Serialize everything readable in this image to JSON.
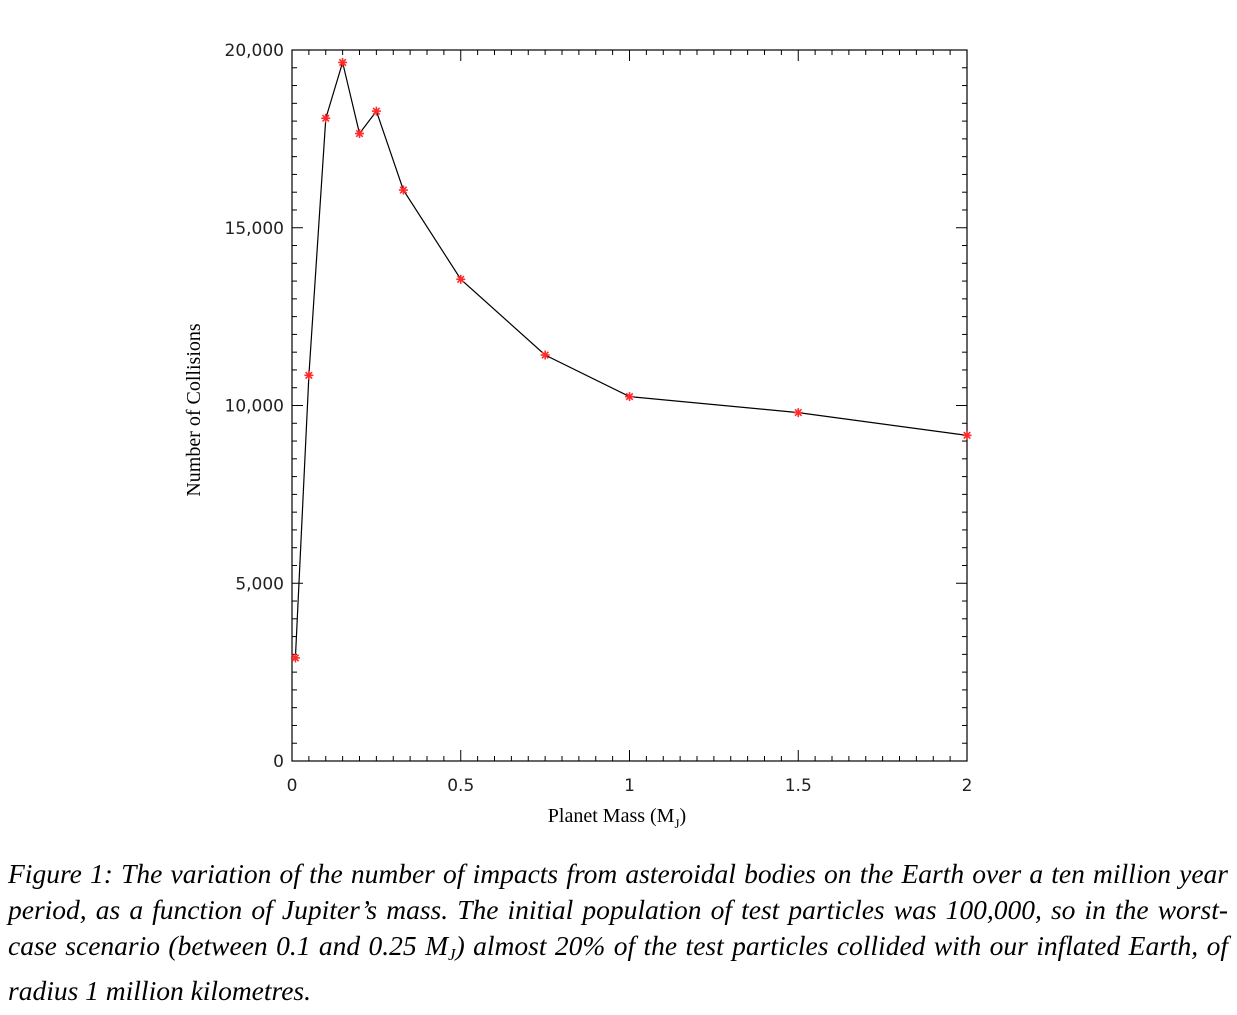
{
  "chart_data": {
    "type": "line",
    "title": "",
    "xlabel": "Planet Mass (M",
    "xlabel_subscript": "J",
    "xlabel_close": ")",
    "ylabel": "Number of Collisions",
    "xlim": [
      0,
      2
    ],
    "ylim": [
      0,
      20000
    ],
    "x_ticks": [
      {
        "value": 0,
        "label": "0"
      },
      {
        "value": 0.5,
        "label": "0.5"
      },
      {
        "value": 1,
        "label": "1"
      },
      {
        "value": 1.5,
        "label": "1.5"
      },
      {
        "value": 2,
        "label": "2"
      }
    ],
    "y_ticks": [
      {
        "value": 0,
        "label": "0"
      },
      {
        "value": 5000,
        "label": "5,000"
      },
      {
        "value": 10000,
        "label": "10,000"
      },
      {
        "value": 15000,
        "label": "15,000"
      },
      {
        "value": 20000,
        "label": "20,000"
      }
    ],
    "grid": false,
    "line_color": "#000000",
    "marker_color": "#ff2a2a",
    "marker": "asterisk",
    "series": [
      {
        "x": [
          0.01,
          0.05,
          0.1,
          0.15,
          0.2,
          0.25,
          0.33,
          0.5,
          0.75,
          1.0,
          1.5,
          2.0
        ],
        "y": [
          2900,
          10850,
          18080,
          19650,
          17650,
          18280,
          16060,
          13550,
          11420,
          10250,
          9800,
          9160
        ]
      }
    ]
  },
  "caption": {
    "lead": "Figure 1: ",
    "text_before_sub": "The variation of the number of impacts from asteroidal bodies on the Earth over a ten million year period, as a function of Jupiter’s mass. The initial population of test particles was 100,000, so in the worst-case scenario (between 0.1 and 0.25 M",
    "subscript": "J",
    "text_after_sub": ") almost 20% of the test particles collided with our inflated Earth, of radius 1 million kilometres."
  }
}
